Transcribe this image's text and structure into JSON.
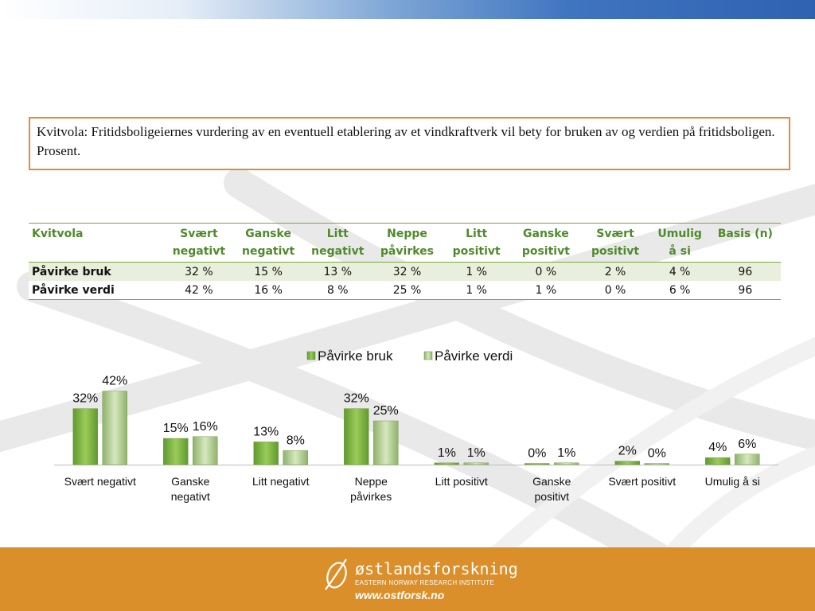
{
  "caption": "Kvitvola: Fritidsboligeiernes vurdering av en eventuell etablering av et vindkraftverk vil bety for bruken av og verdien på fritidsboligen. Prosent.",
  "table": {
    "headers": [
      "Kvitvola",
      "Svært negativt",
      "Ganske negativt",
      "Litt negativt",
      "Neppe påvirkes",
      "Litt positivt",
      "Ganske positivt",
      "Svært positivt",
      "Umulig å si",
      "Basis (n)"
    ],
    "rows": [
      {
        "label": "Påvirke bruk",
        "cells": [
          "32 %",
          "15 %",
          "13 %",
          "32 %",
          "1 %",
          "0 %",
          "2 %",
          "4 %",
          "96"
        ]
      },
      {
        "label": "Påvirke verdi",
        "cells": [
          "42 %",
          "16 %",
          "8 %",
          "25 %",
          "1 %",
          "1 %",
          "0 %",
          "6 %",
          "96"
        ]
      }
    ]
  },
  "chart_data": {
    "type": "bar",
    "categories": [
      "Svært negativt",
      "Ganske negativt",
      "Litt negativt",
      "Neppe påvirkes",
      "Litt positivt",
      "Ganske positivt",
      "Svært positivt",
      "Umulig å si"
    ],
    "category_lines": [
      [
        "Svært negativt"
      ],
      [
        "Ganske",
        "negativt"
      ],
      [
        "Litt negativt"
      ],
      [
        "Neppe",
        "påvirkes"
      ],
      [
        "Litt positivt"
      ],
      [
        "Ganske",
        "positivt"
      ],
      [
        "Svært positivt"
      ],
      [
        "Umulig å si"
      ]
    ],
    "series": [
      {
        "name": "Påvirke bruk",
        "values": [
          32,
          15,
          13,
          32,
          1,
          0,
          2,
          4
        ],
        "labels": [
          "32%",
          "15%",
          "13%",
          "32%",
          "1%",
          "0%",
          "2%",
          "4%"
        ]
      },
      {
        "name": "Påvirke verdi",
        "values": [
          42,
          16,
          8,
          25,
          1,
          1,
          0,
          6
        ],
        "labels": [
          "42%",
          "16%",
          "8%",
          "25%",
          "1%",
          "1%",
          "0%",
          "6%"
        ]
      }
    ],
    "legend": "top-center",
    "colors": {
      "bruk_dark": "#5e9a2e",
      "bruk_light": "#9bcb5a",
      "verdi_dark": "#8fb26a",
      "verdi_light": "#d6e8bf"
    }
  },
  "footer": {
    "name": "østlandsforskning",
    "subtitle": "EASTERN NORWAY RESEARCH INSTITUTE",
    "url": "www.ostforsk.no",
    "color": "#db8f2a"
  }
}
